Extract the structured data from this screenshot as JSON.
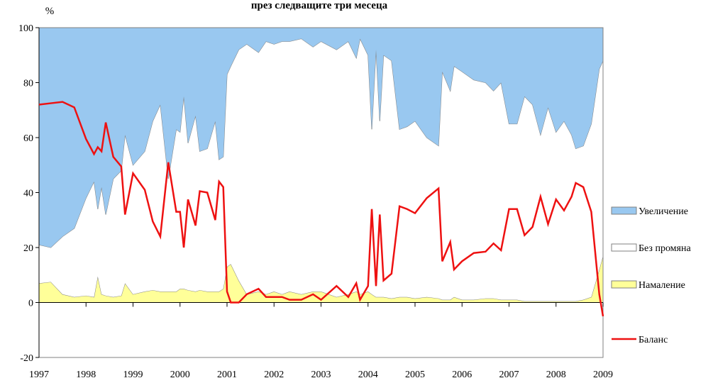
{
  "chart_data": {
    "type": "area",
    "title": "през следващите три месеца",
    "y_label": "%",
    "x": [
      1997.0,
      1997.25,
      1997.5,
      1997.75,
      1998.0,
      1998.17,
      1998.25,
      1998.33,
      1998.42,
      1998.58,
      1998.75,
      1998.83,
      1999.0,
      1999.25,
      1999.42,
      1999.58,
      1999.75,
      1999.92,
      2000.0,
      2000.08,
      2000.17,
      2000.33,
      2000.42,
      2000.58,
      2000.75,
      2000.83,
      2000.92,
      2001.0,
      2001.08,
      2001.25,
      2001.42,
      2001.67,
      2001.83,
      2002.0,
      2002.17,
      2002.33,
      2002.58,
      2002.83,
      2003.0,
      2003.33,
      2003.58,
      2003.75,
      2003.83,
      2004.0,
      2004.08,
      2004.17,
      2004.25,
      2004.33,
      2004.5,
      2004.67,
      2004.83,
      2005.0,
      2005.25,
      2005.5,
      2005.58,
      2005.75,
      2005.83,
      2006.0,
      2006.25,
      2006.5,
      2006.67,
      2006.83,
      2007.0,
      2007.17,
      2007.33,
      2007.5,
      2007.67,
      2007.83,
      2008.0,
      2008.17,
      2008.33,
      2008.42,
      2008.58,
      2008.75,
      2008.92,
      2009.0
    ],
    "series": [
      {
        "name": "Увеличение",
        "type": "area",
        "color": "#99c8f0",
        "values": [
          79,
          80,
          76,
          73,
          62,
          56,
          66,
          58,
          68,
          55,
          52,
          39,
          50,
          45,
          34,
          28,
          55,
          37,
          38,
          25,
          42,
          32,
          45,
          44,
          34,
          48,
          47,
          17,
          14,
          8,
          6,
          9,
          5,
          6,
          5,
          5,
          4,
          7,
          5,
          8,
          5,
          11,
          4,
          10,
          37,
          8,
          34,
          10,
          12,
          37,
          36,
          34,
          40,
          43,
          16,
          23,
          14,
          16,
          19,
          20,
          23,
          20,
          35,
          35,
          25,
          28,
          39,
          29,
          38,
          34,
          39,
          44,
          43,
          35,
          15,
          12
        ]
      },
      {
        "name": "Без промяна",
        "type": "area",
        "color": "#ffffff",
        "values": [
          14,
          12.5,
          21,
          25,
          35.5,
          42,
          24.5,
          39,
          29.5,
          43,
          45.5,
          54,
          47,
          51,
          61.5,
          68,
          41,
          59,
          57,
          70,
          53.5,
          64,
          50.5,
          52,
          62,
          48,
          48,
          70,
          72,
          84,
          91,
          87,
          92,
          90,
          92,
          91,
          93,
          89,
          91,
          90,
          92,
          85,
          93,
          86,
          60,
          90,
          64,
          88,
          86.5,
          61,
          62,
          64.5,
          58,
          55.5,
          83,
          76,
          84,
          83,
          80,
          78.5,
          75.5,
          79,
          64,
          64,
          74.5,
          71.5,
          60.5,
          70.5,
          61.5,
          65.5,
          60.5,
          55.5,
          56,
          63,
          73,
          71
        ]
      },
      {
        "name": "Намаление",
        "type": "area",
        "color": "#ffff99",
        "values": [
          7,
          7.5,
          3,
          2,
          2.5,
          2,
          9.5,
          3,
          2.5,
          2,
          2.5,
          7,
          3,
          4,
          4.5,
          4,
          4,
          4,
          5,
          5,
          4.5,
          4,
          4.5,
          4,
          4,
          4,
          5,
          13,
          14,
          8,
          3,
          4,
          3,
          4,
          3,
          4,
          3,
          4,
          4,
          2,
          3,
          4,
          3,
          4,
          3,
          2,
          2,
          2,
          1.5,
          2,
          2,
          1.5,
          2,
          1.5,
          1,
          1,
          2,
          1,
          1,
          1.5,
          1.5,
          1,
          1,
          1,
          0.5,
          0.5,
          0.5,
          0.5,
          0.5,
          0.5,
          0.5,
          0.5,
          1,
          2,
          12,
          17
        ]
      },
      {
        "name": "Баланс",
        "type": "line",
        "color": "#ee1111",
        "values": [
          72,
          72.5,
          73,
          71,
          59.5,
          54,
          56.5,
          55,
          65.5,
          53,
          49.5,
          32,
          47,
          41,
          29.5,
          24,
          51,
          33,
          33,
          20,
          37.5,
          28,
          40.5,
          40,
          30,
          44,
          42,
          4,
          0,
          0,
          3,
          5,
          2,
          2,
          2,
          1,
          1,
          3,
          1,
          6,
          2,
          7,
          1,
          6,
          34,
          6,
          32,
          8,
          10.5,
          35,
          34,
          32.5,
          38,
          41.5,
          15,
          22,
          12,
          15,
          18,
          18.5,
          21.5,
          19,
          34,
          34,
          24.5,
          27.5,
          38.5,
          28.5,
          37.5,
          33.5,
          38.5,
          43.5,
          42,
          33,
          3,
          -5
        ]
      }
    ],
    "xlim": [
      1997,
      2009
    ],
    "xticks": [
      1997,
      1998,
      1999,
      2000,
      2001,
      2002,
      2003,
      2004,
      2005,
      2006,
      2007,
      2008,
      2009
    ],
    "ylim": [
      -20,
      100
    ],
    "yticks": [
      -20,
      0,
      20,
      40,
      60,
      80,
      100
    ]
  }
}
